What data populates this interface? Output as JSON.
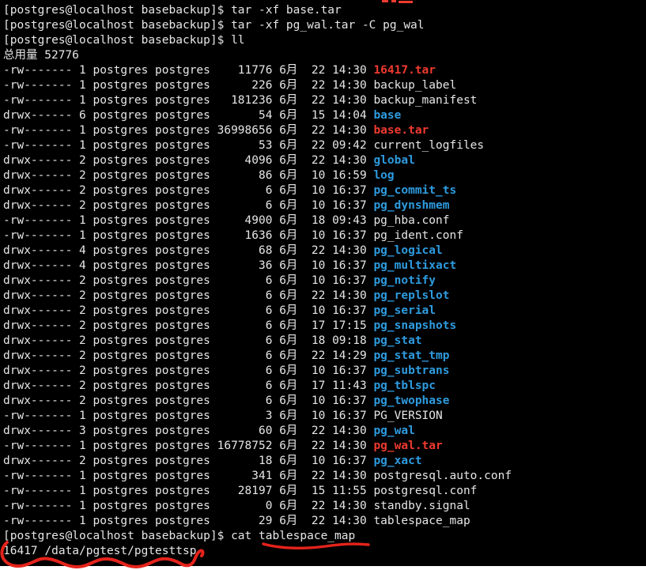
{
  "terminal": {
    "prompt": "[postgres@localhost basebackup]$",
    "commands": {
      "untar_base": "tar -xf base.tar",
      "untar_wal": "tar -xf pg_wal.tar -C pg_wal",
      "list": "ll",
      "cat_map": "cat tablespace_map"
    },
    "total_line": "总用量 52776",
    "cat_output": "16417 /data/pgtest/pgtesttsp",
    "listing": {
      "owner": "postgres",
      "group": "postgres",
      "month": "6月",
      "rows": [
        {
          "perms": "-rw-------",
          "links": "1",
          "size": "11776",
          "day": "22",
          "time": "14:30",
          "name": "16417.tar",
          "type": "archive"
        },
        {
          "perms": "-rw-------",
          "links": "1",
          "size": "226",
          "day": "22",
          "time": "14:30",
          "name": "backup_label",
          "type": "file"
        },
        {
          "perms": "-rw-------",
          "links": "1",
          "size": "181236",
          "day": "22",
          "time": "14:30",
          "name": "backup_manifest",
          "type": "file"
        },
        {
          "perms": "drwx------",
          "links": "6",
          "size": "54",
          "day": "15",
          "time": "14:04",
          "name": "base",
          "type": "dir"
        },
        {
          "perms": "-rw-------",
          "links": "1",
          "size": "36998656",
          "day": "22",
          "time": "14:30",
          "name": "base.tar",
          "type": "archive"
        },
        {
          "perms": "-rw-------",
          "links": "1",
          "size": "53",
          "day": "22",
          "time": "09:42",
          "name": "current_logfiles",
          "type": "file"
        },
        {
          "perms": "drwx------",
          "links": "2",
          "size": "4096",
          "day": "22",
          "time": "14:30",
          "name": "global",
          "type": "dir"
        },
        {
          "perms": "drwx------",
          "links": "2",
          "size": "86",
          "day": "10",
          "time": "16:59",
          "name": "log",
          "type": "dir"
        },
        {
          "perms": "drwx------",
          "links": "2",
          "size": "6",
          "day": "10",
          "time": "16:37",
          "name": "pg_commit_ts",
          "type": "dir"
        },
        {
          "perms": "drwx------",
          "links": "2",
          "size": "6",
          "day": "10",
          "time": "16:37",
          "name": "pg_dynshmem",
          "type": "dir"
        },
        {
          "perms": "-rw-------",
          "links": "1",
          "size": "4900",
          "day": "18",
          "time": "09:43",
          "name": "pg_hba.conf",
          "type": "file"
        },
        {
          "perms": "-rw-------",
          "links": "1",
          "size": "1636",
          "day": "10",
          "time": "16:37",
          "name": "pg_ident.conf",
          "type": "file"
        },
        {
          "perms": "drwx------",
          "links": "4",
          "size": "68",
          "day": "22",
          "time": "14:30",
          "name": "pg_logical",
          "type": "dir"
        },
        {
          "perms": "drwx------",
          "links": "4",
          "size": "36",
          "day": "10",
          "time": "16:37",
          "name": "pg_multixact",
          "type": "dir"
        },
        {
          "perms": "drwx------",
          "links": "2",
          "size": "6",
          "day": "10",
          "time": "16:37",
          "name": "pg_notify",
          "type": "dir"
        },
        {
          "perms": "drwx------",
          "links": "2",
          "size": "6",
          "day": "22",
          "time": "14:30",
          "name": "pg_replslot",
          "type": "dir"
        },
        {
          "perms": "drwx------",
          "links": "2",
          "size": "6",
          "day": "10",
          "time": "16:37",
          "name": "pg_serial",
          "type": "dir"
        },
        {
          "perms": "drwx------",
          "links": "2",
          "size": "6",
          "day": "17",
          "time": "17:15",
          "name": "pg_snapshots",
          "type": "dir"
        },
        {
          "perms": "drwx------",
          "links": "2",
          "size": "6",
          "day": "18",
          "time": "09:18",
          "name": "pg_stat",
          "type": "dir"
        },
        {
          "perms": "drwx------",
          "links": "2",
          "size": "6",
          "day": "22",
          "time": "14:29",
          "name": "pg_stat_tmp",
          "type": "dir"
        },
        {
          "perms": "drwx------",
          "links": "2",
          "size": "6",
          "day": "10",
          "time": "16:37",
          "name": "pg_subtrans",
          "type": "dir"
        },
        {
          "perms": "drwx------",
          "links": "2",
          "size": "6",
          "day": "17",
          "time": "11:43",
          "name": "pg_tblspc",
          "type": "dir"
        },
        {
          "perms": "drwx------",
          "links": "2",
          "size": "6",
          "day": "10",
          "time": "16:37",
          "name": "pg_twophase",
          "type": "dir"
        },
        {
          "perms": "-rw-------",
          "links": "1",
          "size": "3",
          "day": "10",
          "time": "16:37",
          "name": "PG_VERSION",
          "type": "file"
        },
        {
          "perms": "drwx------",
          "links": "3",
          "size": "60",
          "day": "22",
          "time": "14:30",
          "name": "pg_wal",
          "type": "dir"
        },
        {
          "perms": "-rw-------",
          "links": "1",
          "size": "16778752",
          "day": "22",
          "time": "14:30",
          "name": "pg_wal.tar",
          "type": "archive"
        },
        {
          "perms": "drwx------",
          "links": "2",
          "size": "18",
          "day": "10",
          "time": "16:37",
          "name": "pg_xact",
          "type": "dir"
        },
        {
          "perms": "-rw-------",
          "links": "1",
          "size": "341",
          "day": "22",
          "time": "14:30",
          "name": "postgresql.auto.conf",
          "type": "file"
        },
        {
          "perms": "-rw-------",
          "links": "1",
          "size": "28197",
          "day": "15",
          "time": "11:55",
          "name": "postgresql.conf",
          "type": "file"
        },
        {
          "perms": "-rw-------",
          "links": "1",
          "size": "0",
          "day": "22",
          "time": "14:30",
          "name": "standby.signal",
          "type": "file"
        },
        {
          "perms": "-rw-------",
          "links": "1",
          "size": "29",
          "day": "22",
          "time": "14:30",
          "name": "tablespace_map",
          "type": "file"
        }
      ]
    },
    "colors": {
      "background": "#000000",
      "text": "#e6e6e6",
      "archive": "#ef3a2f",
      "directory": "#2e9bdf",
      "annotation": "#e5231b"
    },
    "annotations": {
      "underline_target": "tablespace_map",
      "squiggle_target": "16417 /data/pgtest/pgtesttsp"
    }
  }
}
